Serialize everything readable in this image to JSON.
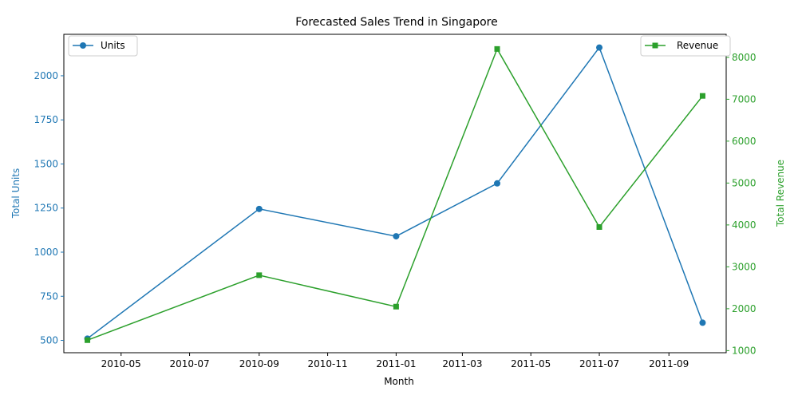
{
  "chart_data": {
    "type": "line",
    "title": "Forecasted Sales Trend in Singapore",
    "xlabel": "Month",
    "ylabel_left": "Total Units",
    "ylabel_right": "Total Revenue",
    "x": [
      "2010-04-01",
      "2010-09-01",
      "2011-01-01",
      "2011-04-01",
      "2011-07-01",
      "2011-10-01"
    ],
    "xlim": [
      "2010-03-11",
      "2011-10-22"
    ],
    "x_ticks": [
      "2010-05",
      "2010-07",
      "2010-09",
      "2010-11",
      "2011-01",
      "2011-03",
      "2011-05",
      "2011-07",
      "2011-09"
    ],
    "y_left_lim": [
      430,
      2235
    ],
    "y_left_ticks": [
      500,
      750,
      1000,
      1250,
      1500,
      1750,
      2000
    ],
    "y_right_lim": [
      950,
      8550
    ],
    "y_right_ticks": [
      1000,
      2000,
      3000,
      4000,
      5000,
      6000,
      7000,
      8000
    ],
    "grid": false,
    "series": [
      {
        "name": "Units",
        "axis": "left",
        "color": "#1f77b4",
        "marker": "circle",
        "values": [
          510,
          1245,
          1090,
          1390,
          2160,
          600
        ],
        "legend_position": "top-left"
      },
      {
        "name": "Revenue",
        "axis": "right",
        "color": "#2ca02c",
        "marker": "square",
        "values": [
          1250,
          2800,
          2050,
          8200,
          3950,
          7080
        ],
        "legend_position": "top-right"
      }
    ]
  }
}
